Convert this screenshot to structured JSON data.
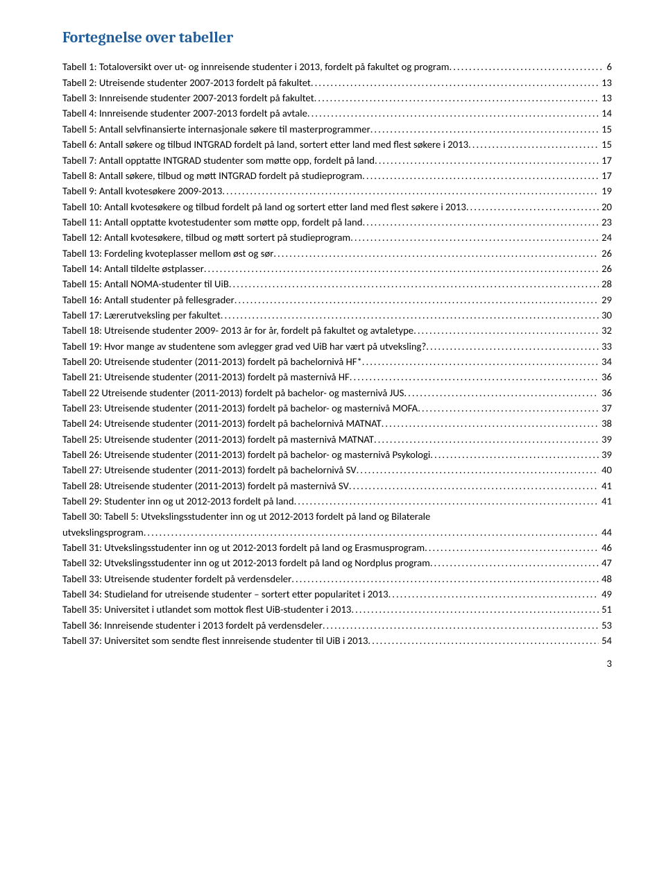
{
  "heading": {
    "text": "Fortegnelse over tabeller",
    "color": "#1f5d9a"
  },
  "page_number": "3",
  "toc": [
    {
      "label": "Tabell 1: Totaloversikt over ut- og innreisende studenter i 2013, fordelt på fakultet og program",
      "page": "6"
    },
    {
      "label": "Tabell 2: Utreisende studenter 2007-2013 fordelt på fakultet",
      "page": "13"
    },
    {
      "label": "Tabell 3: Innreisende studenter 2007-2013 fordelt på fakultet",
      "page": "13"
    },
    {
      "label": "Tabell 4: Innreisende studenter 2007-2013 fordelt på avtale",
      "page": "14"
    },
    {
      "label": "Tabell 5: Antall selvfinansierte internasjonale søkere til masterprogrammer",
      "page": "15"
    },
    {
      "label": "Tabell 6: Antall søkere og tilbud INTGRAD fordelt på land, sortert etter land med flest søkere i 2013",
      "page": "15"
    },
    {
      "label": "Tabell 7: Antall opptatte INTGRAD studenter som møtte opp, fordelt på land",
      "page": "17"
    },
    {
      "label": "Tabell 8: Antall søkere, tilbud og møtt INTGRAD fordelt på studieprogram",
      "page": "17"
    },
    {
      "label": "Tabell 9: Antall kvotesøkere 2009-2013",
      "page": "19"
    },
    {
      "label": "Tabell 10: Antall kvotesøkere og tilbud fordelt på land og sortert etter land med flest søkere i 2013",
      "page": "20"
    },
    {
      "label": "Tabell 11: Antall opptatte kvotestudenter som møtte opp, fordelt på land",
      "page": "23"
    },
    {
      "label": "Tabell 12: Antall kvotesøkere, tilbud og møtt sortert på studieprogram",
      "page": "24"
    },
    {
      "label": "Tabell 13: Fordeling kvoteplasser mellom øst og sør",
      "page": "26"
    },
    {
      "label": "Tabell 14: Antall tildelte østplasser",
      "page": "26"
    },
    {
      "label": "Tabell 15: Antall NOMA-studenter til UiB",
      "page": "28"
    },
    {
      "label": "Tabell 16: Antall studenter på fellesgrader",
      "page": "29"
    },
    {
      "label": "Tabell 17: Lærerutveksling per fakultet",
      "page": "30"
    },
    {
      "label": "Tabell 18: Utreisende studenter 2009- 2013 år for år, fordelt på fakultet og avtaletype",
      "page": "32"
    },
    {
      "label": "Tabell 19: Hvor mange av studentene som avlegger grad ved UiB har vært på utveksling?",
      "page": "33"
    },
    {
      "label": "Tabell 20: Utreisende studenter (2011-2013) fordelt på bachelornivå HF*",
      "page": "34"
    },
    {
      "label": "Tabell 21: Utreisende studenter (2011-2013) fordelt på masternivå HF",
      "page": "36"
    },
    {
      "label": "Tabell 22 Utreisende studenter (2011-2013) fordelt på bachelor- og masternivå JUS",
      "page": "36"
    },
    {
      "label": "Tabell 23: Utreisende studenter (2011-2013) fordelt på bachelor- og masternivå MOFA",
      "page": "37"
    },
    {
      "label": "Tabell 24: Utreisende studenter (2011-2013) fordelt på bachelornivå MATNAT",
      "page": "38"
    },
    {
      "label": "Tabell 25: Utreisende studenter (2011-2013) fordelt på masternivå MATNAT",
      "page": "39"
    },
    {
      "label": "Tabell 26: Utreisende studenter (2011-2013) fordelt på bachelor- og masternivå Psykologi",
      "page": "39"
    },
    {
      "label": "Tabell 27: Utreisende studenter (2011-2013) fordelt på bachelornivå SV",
      "page": "40"
    },
    {
      "label": "Tabell 28: Utreisende studenter (2011-2013) fordelt på masternivå SV",
      "page": "41"
    },
    {
      "label": "Tabell 29: Studenter inn og ut 2012-2013 fordelt på land",
      "page": "41"
    },
    {
      "label": "Tabell 30: Tabell 5: Utvekslingsstudenter inn og ut 2012-2013 fordelt på land og Bilaterale",
      "cont": "utvekslingsprogram",
      "page": "44"
    },
    {
      "label": "Tabell 31: Utvekslingsstudenter inn og ut 2012-2013 fordelt på land og Erasmusprogram",
      "page": "46"
    },
    {
      "label": "Tabell 32: Utvekslingsstudenter inn og ut 2012-2013 fordelt på land og Nordplus program",
      "page": "47"
    },
    {
      "label": "Tabell 33: Utreisende studenter fordelt på verdensdeler",
      "page": "48"
    },
    {
      "label": "Tabell 34: Studieland for utreisende studenter – sortert etter popularitet i 2013",
      "page": "49"
    },
    {
      "label": "Tabell 35: Universitet i utlandet som mottok flest UiB-studenter i 2013",
      "page": "51"
    },
    {
      "label": "Tabell 36: Innreisende studenter i 2013 fordelt på verdensdeler",
      "page": "53"
    },
    {
      "label": "Tabell 37: Universitet som sendte flest innreisende studenter til UiB i 2013",
      "page": "54"
    }
  ]
}
